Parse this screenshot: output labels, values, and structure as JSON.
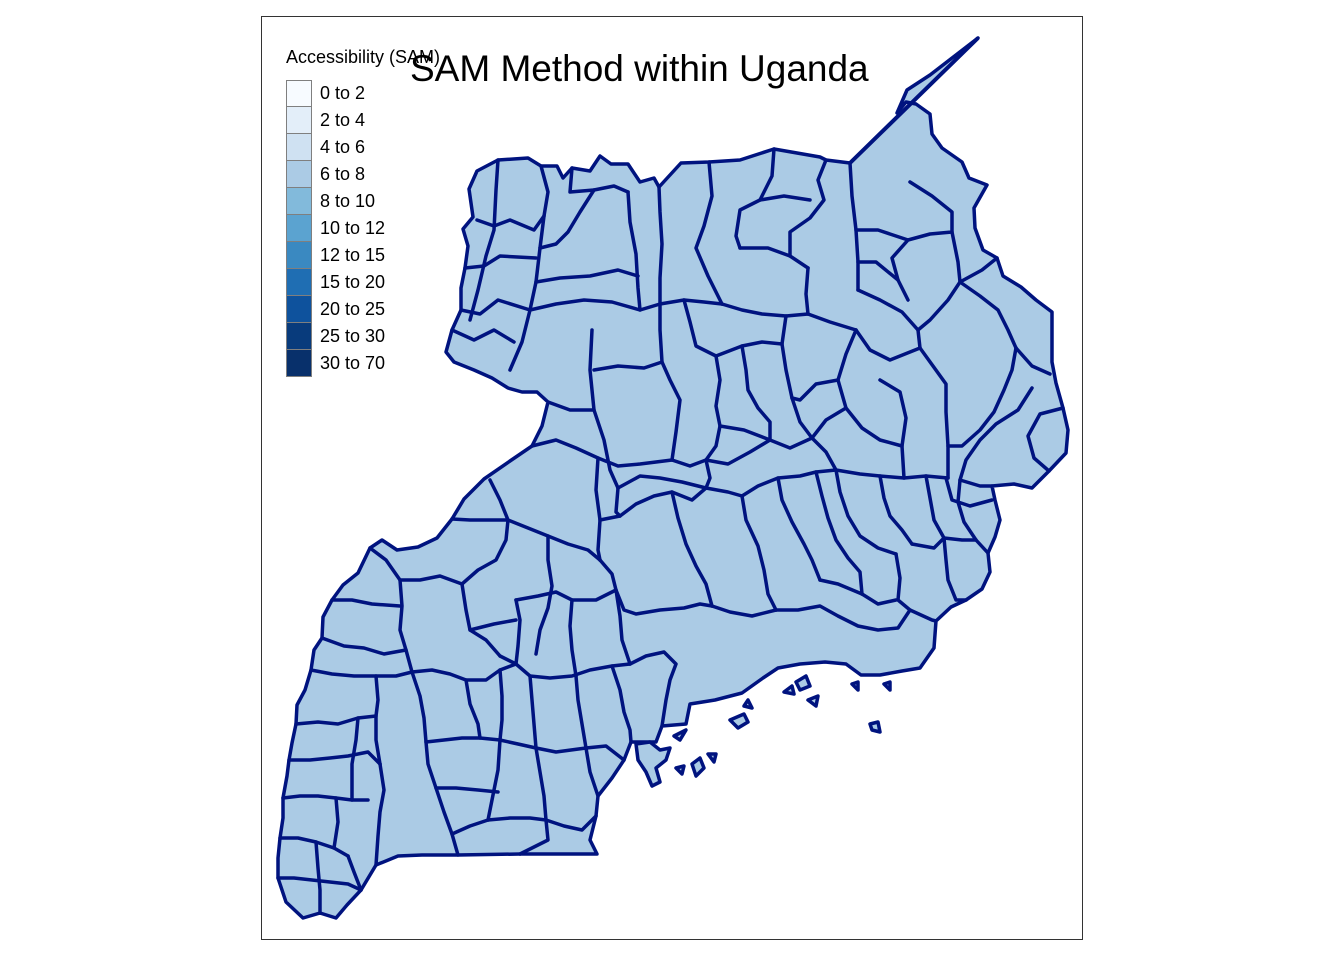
{
  "map": {
    "title": "SAM Method within Uganda",
    "fill_color": "#abcbe5",
    "border_color": "#00137f",
    "background": "#ffffff",
    "frame_color": "#333333"
  },
  "legend": {
    "title": "Accessibility (SAM)",
    "items": [
      {
        "label": "0 to 2",
        "color": "#f7fbff"
      },
      {
        "label": "2 to 4",
        "color": "#e3eef9"
      },
      {
        "label": "4 to 6",
        "color": "#cfe1f2"
      },
      {
        "label": "6 to 8",
        "color": "#abcbe5"
      },
      {
        "label": "8 to 10",
        "color": "#82badb"
      },
      {
        "label": "10 to 12",
        "color": "#5ba3d0"
      },
      {
        "label": "12 to 15",
        "color": "#3a89c1"
      },
      {
        "label": "15 to 20",
        "color": "#1f6eb3"
      },
      {
        "label": "20 to 25",
        "color": "#0e529d"
      },
      {
        "label": "25 to 30",
        "color": "#083b7c"
      },
      {
        "label": "30 to 70",
        "color": "#08306b"
      }
    ]
  }
}
